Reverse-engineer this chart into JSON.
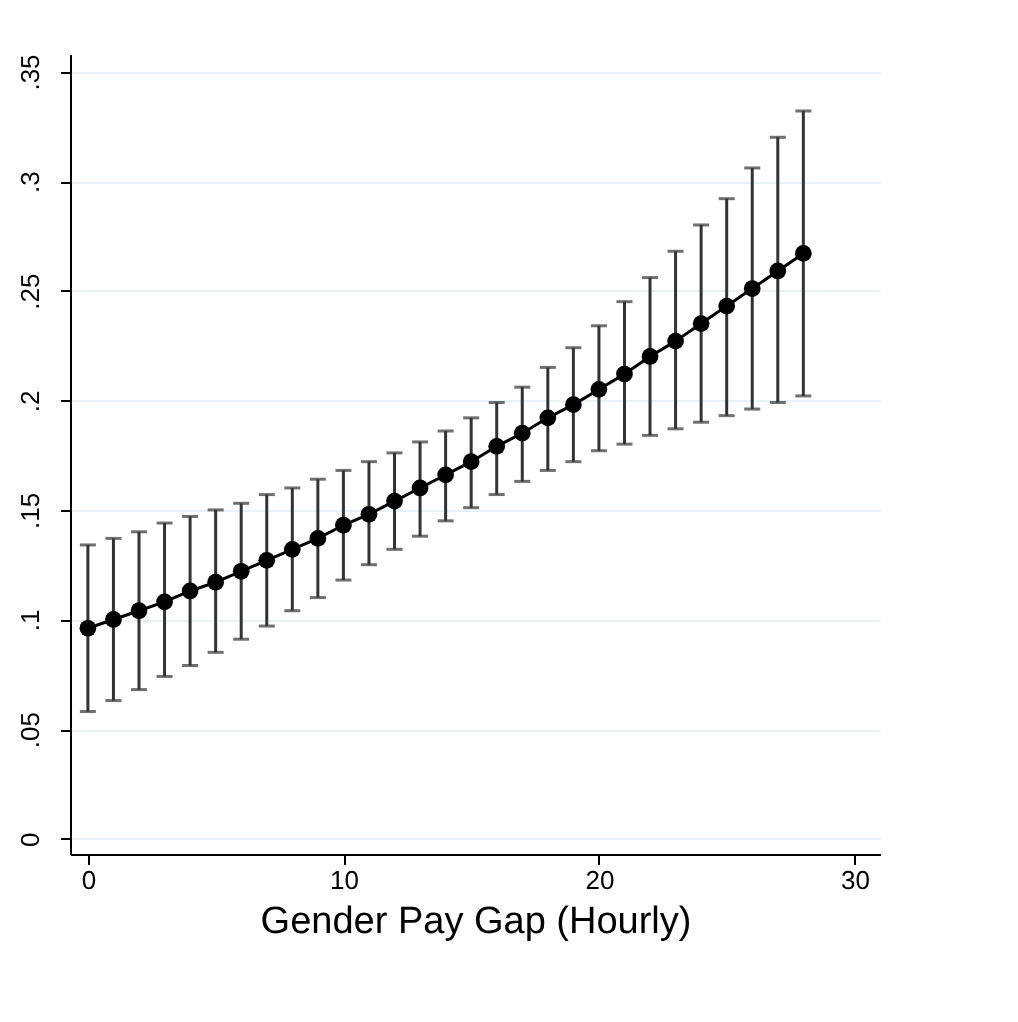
{
  "chart_data": {
    "type": "line",
    "xlabel": "Gender Pay Gap (Hourly)",
    "x": [
      0,
      1,
      2,
      3,
      4,
      5,
      6,
      7,
      8,
      9,
      10,
      11,
      12,
      13,
      14,
      15,
      16,
      17,
      18,
      19,
      20,
      21,
      22,
      23,
      24,
      25,
      26,
      27,
      28
    ],
    "series": [
      {
        "color": "#000000",
        "values": [
          0.096,
          0.1,
          0.104,
          0.108,
          0.113,
          0.117,
          0.122,
          0.127,
          0.132,
          0.137,
          0.143,
          0.148,
          0.154,
          0.16,
          0.166,
          0.172,
          0.179,
          0.185,
          0.192,
          0.198,
          0.205,
          0.212,
          0.22,
          0.227,
          0.235,
          0.243,
          0.251,
          0.259,
          0.267
        ],
        "errors": [
          [
            0.058,
            0.134
          ],
          [
            0.063,
            0.137
          ],
          [
            0.068,
            0.14
          ],
          [
            0.074,
            0.144
          ],
          [
            0.079,
            0.147
          ],
          [
            0.085,
            0.15
          ],
          [
            0.091,
            0.153
          ],
          [
            0.097,
            0.157
          ],
          [
            0.104,
            0.16
          ],
          [
            0.11,
            0.164
          ],
          [
            0.118,
            0.168
          ],
          [
            0.125,
            0.172
          ],
          [
            0.132,
            0.176
          ],
          [
            0.138,
            0.181
          ],
          [
            0.145,
            0.186
          ],
          [
            0.151,
            0.192
          ],
          [
            0.157,
            0.199
          ],
          [
            0.163,
            0.206
          ],
          [
            0.168,
            0.215
          ],
          [
            0.172,
            0.224
          ],
          [
            0.177,
            0.234
          ],
          [
            0.18,
            0.245
          ],
          [
            0.184,
            0.256
          ],
          [
            0.187,
            0.268
          ],
          [
            0.19,
            0.28
          ],
          [
            0.193,
            0.292
          ],
          [
            0.196,
            0.306
          ],
          [
            0.199,
            0.32
          ],
          [
            0.202,
            0.332
          ]
        ]
      }
    ],
    "xlim": [
      -0.7,
      31
    ],
    "xticks": [
      0,
      10,
      20,
      30
    ],
    "ylim": [
      -0.007,
      0.358
    ],
    "yticks": [
      {
        "value": 0,
        "label": "0"
      },
      {
        "value": 0.05,
        "label": ".05"
      },
      {
        "value": 0.1,
        "label": ".1"
      },
      {
        "value": 0.15,
        "label": ".15"
      },
      {
        "value": 0.2,
        "label": ".2"
      },
      {
        "value": 0.25,
        "label": ".25"
      },
      {
        "value": 0.3,
        "label": ".3"
      },
      {
        "value": 0.35,
        "label": ".35"
      }
    ],
    "grid": "y",
    "marker": "circle",
    "line_style": "solid"
  }
}
